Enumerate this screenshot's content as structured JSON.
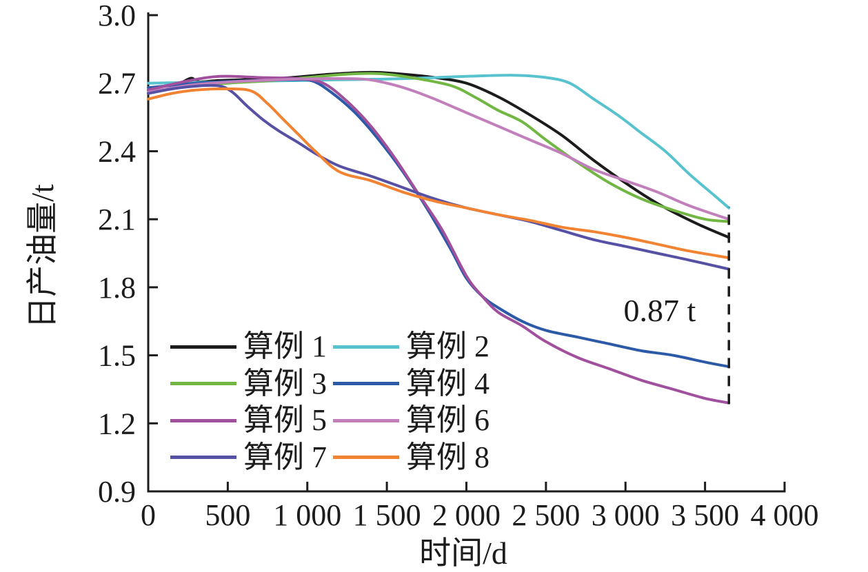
{
  "figure": {
    "background": "#ffffff",
    "axis_color": "#1c1c1c"
  },
  "chart_data": {
    "type": "line",
    "title": "",
    "xlabel": "时间/d",
    "ylabel": "日产油量/t",
    "xlim": [
      0,
      4000
    ],
    "ylim": [
      0.9,
      3.0
    ],
    "grid": false,
    "legend_position": "lower-left-inside",
    "x_tick_labels": [
      "0",
      "500",
      "1 000",
      "1 500",
      "2 000",
      "2 500",
      "3 000",
      "3 500",
      "4 000"
    ],
    "x_tick_values": [
      0,
      500,
      1000,
      1500,
      2000,
      2500,
      3000,
      3500,
      4000
    ],
    "y_tick_labels": [
      "0.9",
      "1.2",
      "1.5",
      "1.8",
      "2.1",
      "2.4",
      "2.7",
      "3.0"
    ],
    "y_tick_values": [
      0.9,
      1.2,
      1.5,
      1.8,
      2.1,
      2.4,
      2.7,
      3.0
    ],
    "annotation": {
      "text": "0.87 t",
      "color": "#e8232f",
      "x": 3215,
      "y": 1.7
    },
    "dashed_line": {
      "x": 3650,
      "y_from": 1.285,
      "y_to": 2.155,
      "color": "#1c1c1c"
    },
    "series": [
      {
        "name": "算例 1",
        "color": "#1c1c1c",
        "points": [
          [
            0,
            2.67
          ],
          [
            120,
            2.69
          ],
          [
            200,
            2.7
          ],
          [
            270,
            2.722
          ],
          [
            320,
            2.706
          ],
          [
            450,
            2.712
          ],
          [
            700,
            2.718
          ],
          [
            900,
            2.725
          ],
          [
            1150,
            2.74
          ],
          [
            1400,
            2.748
          ],
          [
            1600,
            2.74
          ],
          [
            1800,
            2.725
          ],
          [
            2000,
            2.7
          ],
          [
            2200,
            2.64
          ],
          [
            2400,
            2.56
          ],
          [
            2600,
            2.47
          ],
          [
            2800,
            2.36
          ],
          [
            3000,
            2.26
          ],
          [
            3200,
            2.17
          ],
          [
            3450,
            2.08
          ],
          [
            3650,
            2.02
          ]
        ]
      },
      {
        "name": "算例 2",
        "color": "#58c3cf",
        "points": [
          [
            0,
            2.7
          ],
          [
            400,
            2.705
          ],
          [
            800,
            2.71
          ],
          [
            1200,
            2.715
          ],
          [
            1600,
            2.72
          ],
          [
            2000,
            2.73
          ],
          [
            2300,
            2.735
          ],
          [
            2500,
            2.725
          ],
          [
            2650,
            2.7
          ],
          [
            2800,
            2.63
          ],
          [
            2950,
            2.56
          ],
          [
            3100,
            2.48
          ],
          [
            3250,
            2.4
          ],
          [
            3400,
            2.3
          ],
          [
            3550,
            2.21
          ],
          [
            3650,
            2.15
          ]
        ]
      },
      {
        "name": "算例 3",
        "color": "#72b743",
        "points": [
          [
            0,
            2.66
          ],
          [
            250,
            2.685
          ],
          [
            500,
            2.7
          ],
          [
            750,
            2.71
          ],
          [
            1000,
            2.725
          ],
          [
            1250,
            2.74
          ],
          [
            1450,
            2.742
          ],
          [
            1650,
            2.725
          ],
          [
            1900,
            2.69
          ],
          [
            2050,
            2.64
          ],
          [
            2200,
            2.58
          ],
          [
            2350,
            2.53
          ],
          [
            2500,
            2.45
          ],
          [
            2700,
            2.35
          ],
          [
            2900,
            2.26
          ],
          [
            3100,
            2.19
          ],
          [
            3300,
            2.14
          ],
          [
            3500,
            2.1
          ],
          [
            3650,
            2.09
          ]
        ]
      },
      {
        "name": "算例 4",
        "color": "#2d5aa6",
        "points": [
          [
            0,
            2.68
          ],
          [
            300,
            2.7
          ],
          [
            600,
            2.71
          ],
          [
            900,
            2.715
          ],
          [
            1030,
            2.71
          ],
          [
            1150,
            2.66
          ],
          [
            1300,
            2.57
          ],
          [
            1450,
            2.45
          ],
          [
            1600,
            2.31
          ],
          [
            1750,
            2.15
          ],
          [
            1900,
            1.97
          ],
          [
            2000,
            1.84
          ],
          [
            2100,
            1.76
          ],
          [
            2200,
            1.71
          ],
          [
            2350,
            1.65
          ],
          [
            2500,
            1.61
          ],
          [
            2700,
            1.58
          ],
          [
            2900,
            1.55
          ],
          [
            3100,
            1.52
          ],
          [
            3300,
            1.5
          ],
          [
            3500,
            1.47
          ],
          [
            3650,
            1.45
          ]
        ]
      },
      {
        "name": "算例 5",
        "color": "#a1509e",
        "points": [
          [
            0,
            2.67
          ],
          [
            250,
            2.71
          ],
          [
            450,
            2.73
          ],
          [
            700,
            2.725
          ],
          [
            950,
            2.72
          ],
          [
            1100,
            2.7
          ],
          [
            1250,
            2.62
          ],
          [
            1400,
            2.51
          ],
          [
            1550,
            2.37
          ],
          [
            1700,
            2.21
          ],
          [
            1850,
            2.05
          ],
          [
            2000,
            1.85
          ],
          [
            2100,
            1.76
          ],
          [
            2200,
            1.69
          ],
          [
            2350,
            1.63
          ],
          [
            2500,
            1.56
          ],
          [
            2700,
            1.49
          ],
          [
            2900,
            1.44
          ],
          [
            3100,
            1.39
          ],
          [
            3300,
            1.35
          ],
          [
            3500,
            1.31
          ],
          [
            3650,
            1.29
          ]
        ]
      },
      {
        "name": "算例 6",
        "color": "#c180bc",
        "points": [
          [
            0,
            2.66
          ],
          [
            250,
            2.69
          ],
          [
            500,
            2.705
          ],
          [
            800,
            2.715
          ],
          [
            1100,
            2.72
          ],
          [
            1350,
            2.718
          ],
          [
            1500,
            2.7
          ],
          [
            1650,
            2.67
          ],
          [
            1800,
            2.63
          ],
          [
            2000,
            2.57
          ],
          [
            2200,
            2.51
          ],
          [
            2400,
            2.45
          ],
          [
            2600,
            2.39
          ],
          [
            2800,
            2.32
          ],
          [
            3000,
            2.27
          ],
          [
            3200,
            2.22
          ],
          [
            3400,
            2.16
          ],
          [
            3650,
            2.1
          ]
        ]
      },
      {
        "name": "算例 7",
        "color": "#5751a5",
        "points": [
          [
            0,
            2.655
          ],
          [
            200,
            2.68
          ],
          [
            420,
            2.69
          ],
          [
            520,
            2.665
          ],
          [
            620,
            2.6
          ],
          [
            720,
            2.54
          ],
          [
            820,
            2.49
          ],
          [
            950,
            2.435
          ],
          [
            1050,
            2.39
          ],
          [
            1200,
            2.335
          ],
          [
            1400,
            2.29
          ],
          [
            1600,
            2.24
          ],
          [
            1800,
            2.19
          ],
          [
            2000,
            2.15
          ],
          [
            2200,
            2.12
          ],
          [
            2400,
            2.09
          ],
          [
            2600,
            2.05
          ],
          [
            2800,
            2.01
          ],
          [
            3000,
            1.98
          ],
          [
            3200,
            1.95
          ],
          [
            3400,
            1.92
          ],
          [
            3650,
            1.88
          ]
        ]
      },
      {
        "name": "算例 8",
        "color": "#f28333",
        "points": [
          [
            0,
            2.63
          ],
          [
            150,
            2.655
          ],
          [
            300,
            2.67
          ],
          [
            500,
            2.675
          ],
          [
            650,
            2.665
          ],
          [
            750,
            2.61
          ],
          [
            850,
            2.54
          ],
          [
            950,
            2.47
          ],
          [
            1050,
            2.4
          ],
          [
            1200,
            2.31
          ],
          [
            1400,
            2.27
          ],
          [
            1600,
            2.22
          ],
          [
            1800,
            2.18
          ],
          [
            2000,
            2.15
          ],
          [
            2200,
            2.12
          ],
          [
            2400,
            2.095
          ],
          [
            2600,
            2.065
          ],
          [
            2800,
            2.045
          ],
          [
            3000,
            2.02
          ],
          [
            3200,
            1.99
          ],
          [
            3400,
            1.96
          ],
          [
            3650,
            1.93
          ]
        ]
      }
    ]
  }
}
